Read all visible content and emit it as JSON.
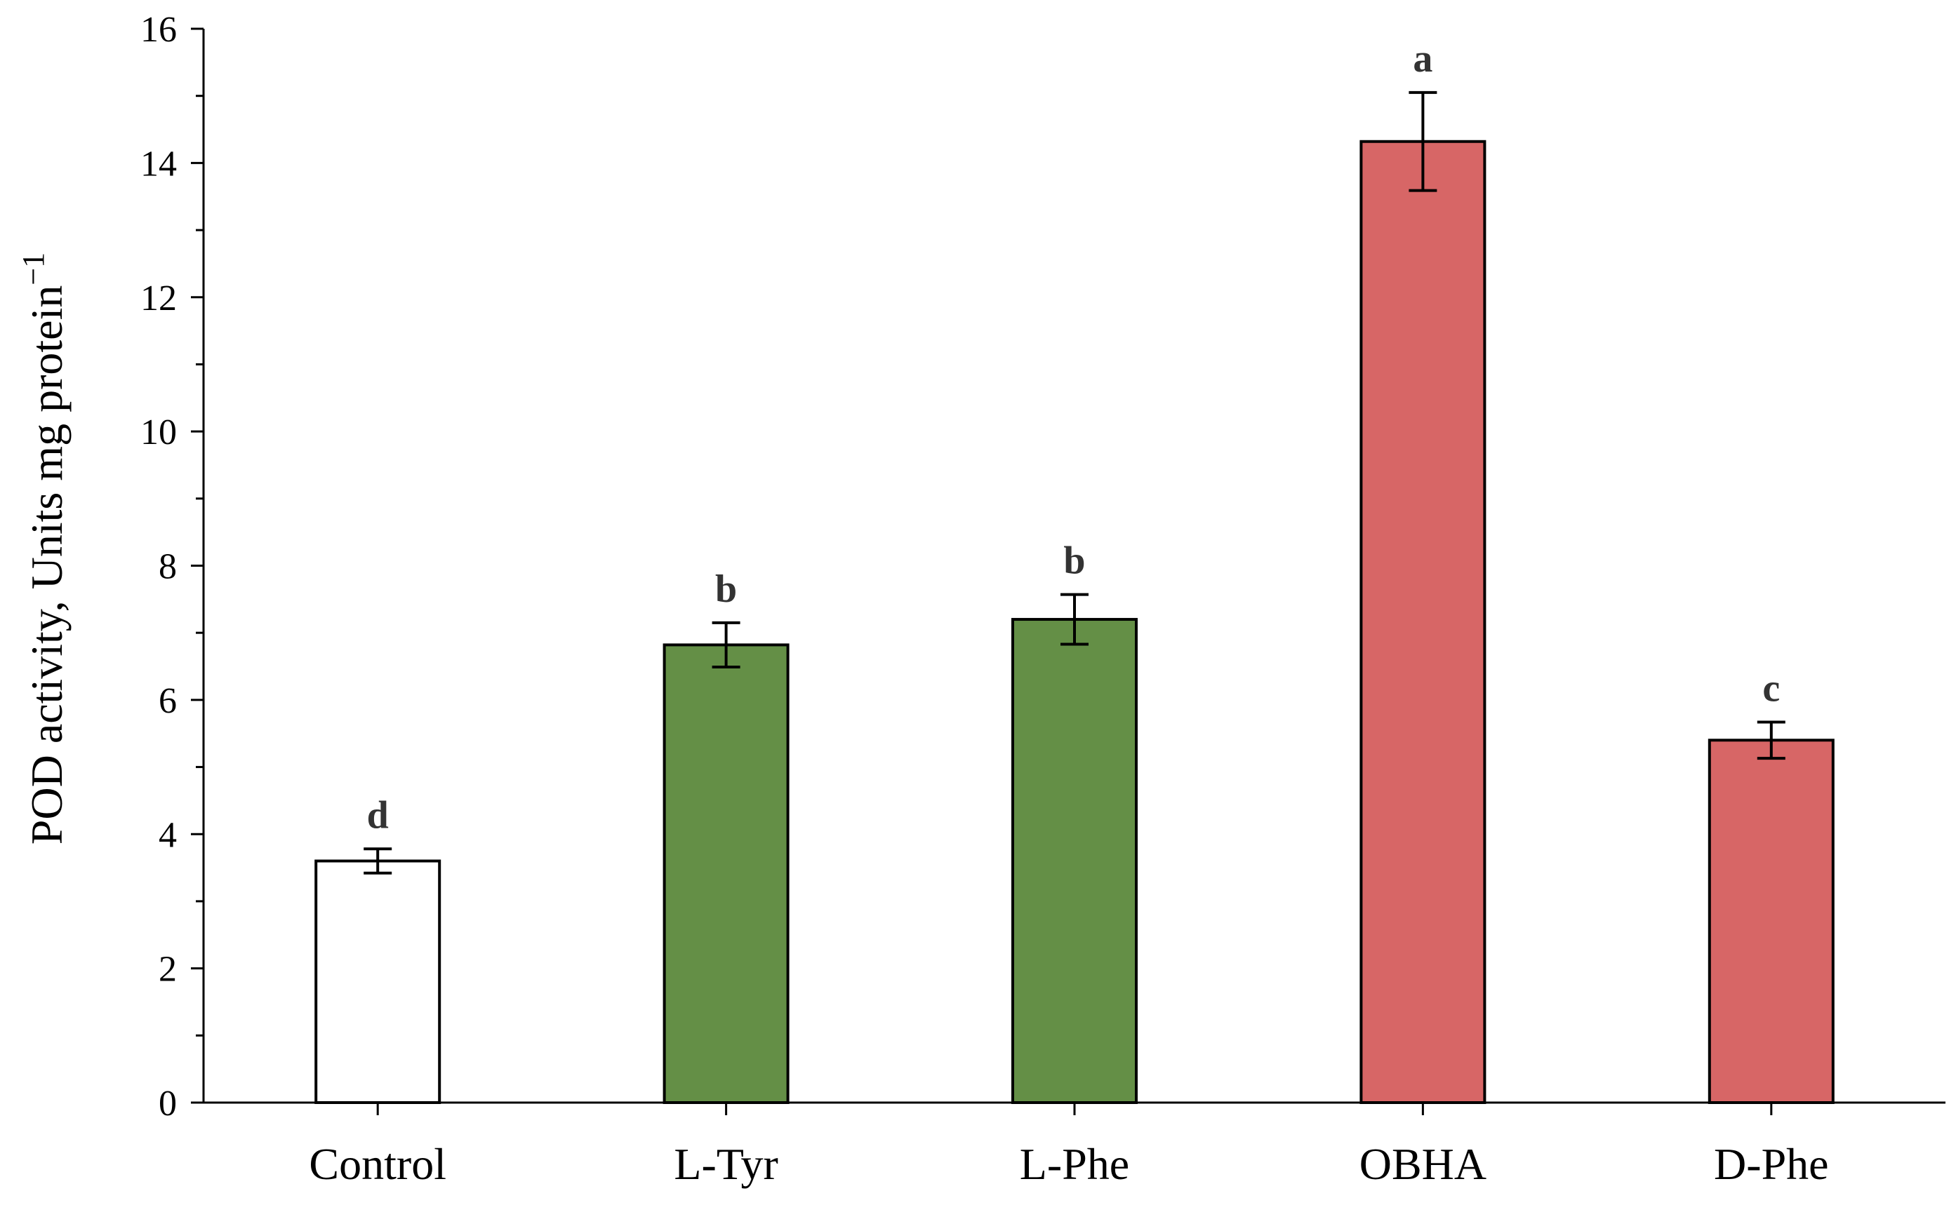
{
  "chart_data": {
    "type": "bar",
    "ylabel": "POD activity, Units mg protein",
    "ylabel_superscript": "−1",
    "xlabel": "",
    "ylim": [
      0,
      16
    ],
    "yticks": [
      "0",
      "2",
      "4",
      "6",
      "8",
      "10",
      "12",
      "14",
      "16"
    ],
    "ytick_values": [
      0,
      2,
      4,
      6,
      8,
      10,
      12,
      14,
      16
    ],
    "minor_tick_step": 1,
    "grid": false,
    "legend": "none",
    "categories": [
      "Control",
      "L-Tyr",
      "L-Phe",
      "OBHA",
      "D-Phe"
    ],
    "values": [
      3.6,
      6.82,
      7.2,
      14.32,
      5.4
    ],
    "errors": [
      0.18,
      0.33,
      0.37,
      0.73,
      0.27
    ],
    "significance": [
      "d",
      "b",
      "b",
      "a",
      "c"
    ],
    "colors": [
      "#ffffff",
      "#648f46",
      "#648f46",
      "#d76666",
      "#d76666"
    ],
    "bar_edge_color": "#000000"
  }
}
